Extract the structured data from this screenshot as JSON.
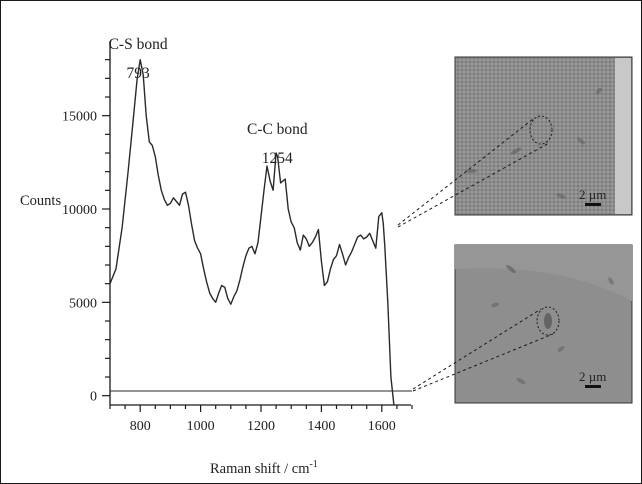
{
  "chart_data": {
    "type": "line",
    "xlabel": "Raman shift / cm",
    "xlabel_superscript": "-1",
    "ylabel": "Counts",
    "xlim": [
      700,
      1700
    ],
    "ylim": [
      -500,
      19000
    ],
    "x_ticks": [
      800,
      1000,
      1200,
      1400,
      1600
    ],
    "y_ticks": [
      0,
      5000,
      10000,
      15000
    ],
    "grid": false,
    "annotations": [
      {
        "text": "C-S bond",
        "x": 793
      },
      {
        "text": "793",
        "x": 793
      },
      {
        "text": "C-C bond",
        "x": 1254
      },
      {
        "text": "1254",
        "x": 1254
      }
    ],
    "series": [
      {
        "color": "#2a2a2a",
        "x": [
          700,
          720,
          740,
          760,
          775,
          790,
          800,
          810,
          820,
          830,
          840,
          850,
          860,
          870,
          880,
          890,
          900,
          910,
          920,
          930,
          940,
          950,
          960,
          970,
          980,
          990,
          1000,
          1010,
          1020,
          1030,
          1040,
          1050,
          1060,
          1070,
          1080,
          1090,
          1100,
          1110,
          1120,
          1130,
          1140,
          1150,
          1160,
          1170,
          1180,
          1190,
          1200,
          1210,
          1220,
          1230,
          1240,
          1250,
          1255,
          1265,
          1280,
          1290,
          1300,
          1310,
          1320,
          1330,
          1340,
          1350,
          1360,
          1370,
          1380,
          1390,
          1400,
          1410,
          1420,
          1430,
          1440,
          1450,
          1460,
          1470,
          1480,
          1490,
          1500,
          1510,
          1520,
          1530,
          1540,
          1550,
          1560,
          1570,
          1580,
          1590,
          1600,
          1605,
          1610,
          1620,
          1630,
          1640
        ],
        "y": [
          6000,
          6800,
          9000,
          12000,
          14500,
          17000,
          18000,
          17200,
          15000,
          13600,
          13400,
          12800,
          11800,
          11000,
          10500,
          10200,
          10300,
          10600,
          10400,
          10200,
          10800,
          10900,
          10200,
          9200,
          8300,
          7900,
          7600,
          6800,
          6100,
          5500,
          5200,
          5000,
          5500,
          5900,
          5800,
          5200,
          4900,
          5300,
          5600,
          6200,
          6900,
          7500,
          7900,
          8000,
          7600,
          8200,
          9600,
          11000,
          12300,
          11500,
          11000,
          13000,
          12800,
          11400,
          11600,
          10000,
          9300,
          9000,
          8200,
          7800,
          8600,
          8400,
          8000,
          8200,
          8500,
          8900,
          7200,
          5900,
          6100,
          6800,
          7300,
          7500,
          8100,
          7600,
          7000,
          7400,
          7700,
          8100,
          8500,
          8600,
          8400,
          8500,
          8700,
          8300,
          7900,
          9600,
          9800,
          9200,
          8000,
          5000,
          1000,
          -500
        ]
      },
      {
        "color": "#2a2a2a",
        "x": [
          700,
          1700
        ],
        "y": [
          250,
          250
        ]
      }
    ]
  },
  "micrographs": [
    {
      "scale_label": "2 µm"
    },
    {
      "scale_label": "2 µm"
    }
  ]
}
